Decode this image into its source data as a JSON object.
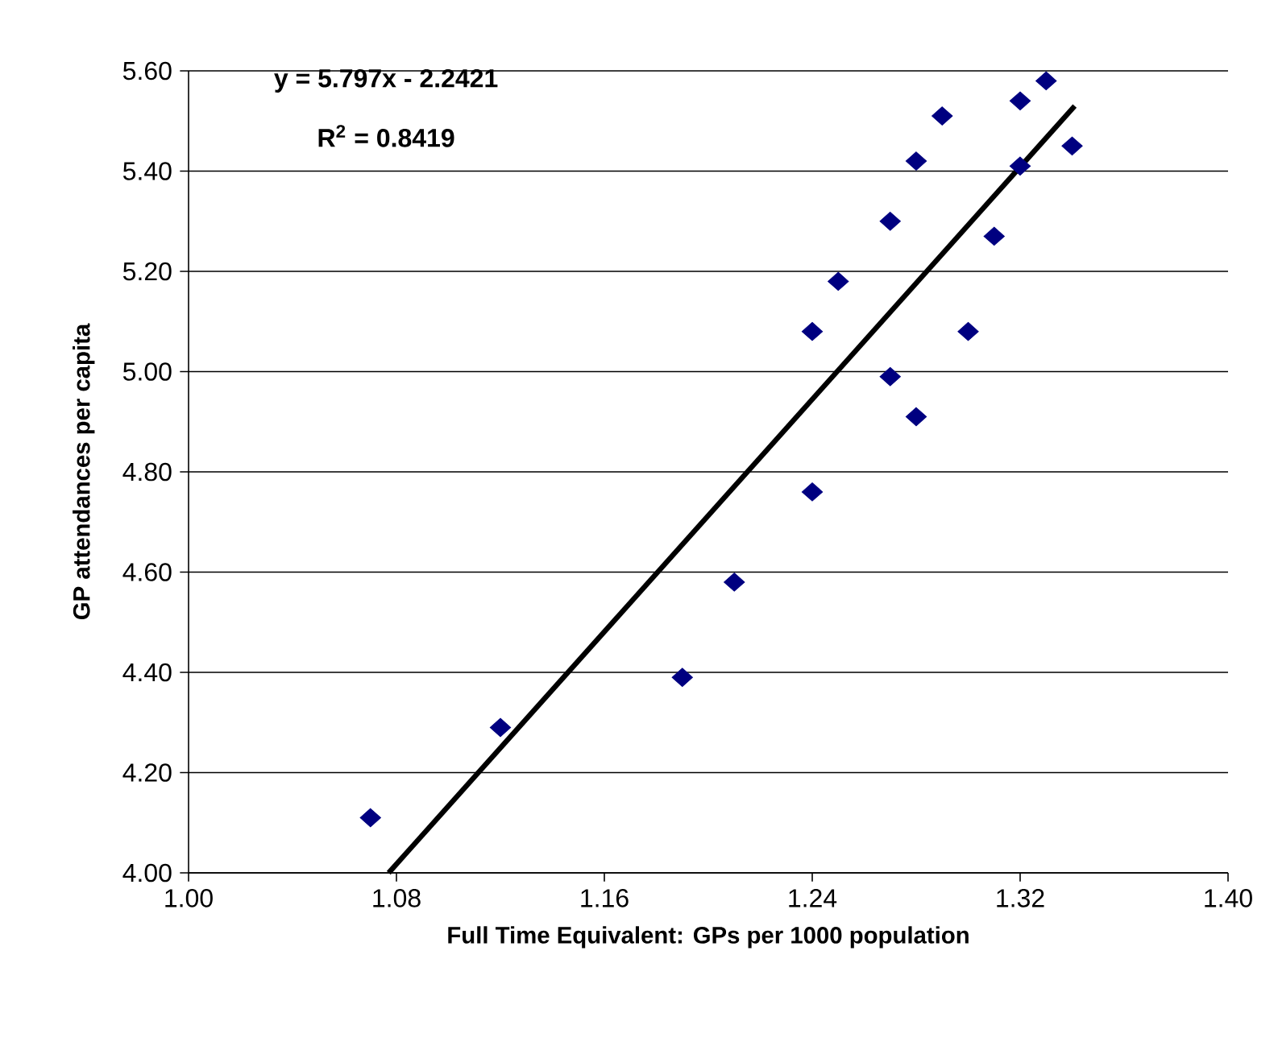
{
  "chart_data": {
    "type": "scatter",
    "xlabel": "Full Time Equivalent: GPs per 1000 population",
    "ylabel": "GP attendances per capita",
    "annotations": [
      "y = 5.797x - 2.2421",
      "R$^{2}$ = 0.8419"
    ],
    "xlim": [
      1.0,
      1.4
    ],
    "ylim": [
      4.0,
      5.6
    ],
    "xticks": [
      {
        "value": 1.0,
        "label": "1.00"
      },
      {
        "value": 1.08,
        "label": "1.08"
      },
      {
        "value": 1.16,
        "label": "1.16"
      },
      {
        "value": 1.24,
        "label": "1.24"
      },
      {
        "value": 1.32,
        "label": "1.32"
      },
      {
        "value": 1.4,
        "label": "1.40"
      }
    ],
    "yticks": [
      {
        "value": 4.0,
        "label": "4.00"
      },
      {
        "value": 4.2,
        "label": "4.20"
      },
      {
        "value": 4.4,
        "label": "4.40"
      },
      {
        "value": 4.6,
        "label": "4.60"
      },
      {
        "value": 4.8,
        "label": "4.80"
      },
      {
        "value": 5.0,
        "label": "5.00"
      },
      {
        "value": 5.2,
        "label": "5.20"
      },
      {
        "value": 5.4,
        "label": "5.40"
      },
      {
        "value": 5.6,
        "label": "5.60"
      }
    ],
    "grid": "y",
    "marker": "diamond",
    "series": [
      {
        "color": "#000080",
        "x": [
          1.07,
          1.12,
          1.19,
          1.21,
          1.24,
          1.24,
          1.25,
          1.27,
          1.27,
          1.28,
          1.28,
          1.29,
          1.3,
          1.31,
          1.32,
          1.32,
          1.33,
          1.34
        ],
        "values": [
          4.11,
          4.29,
          4.39,
          4.58,
          4.76,
          5.08,
          5.18,
          5.3,
          4.99,
          5.42,
          4.91,
          5.51,
          5.08,
          5.27,
          5.41,
          5.54,
          5.58,
          5.45
        ]
      },
      {
        "type": "line",
        "color": "#000000",
        "x": [
          1.077,
          1.341
        ],
        "values": [
          4.0,
          5.53
        ],
        "marker": "none",
        "line_style": "solid"
      }
    ]
  }
}
